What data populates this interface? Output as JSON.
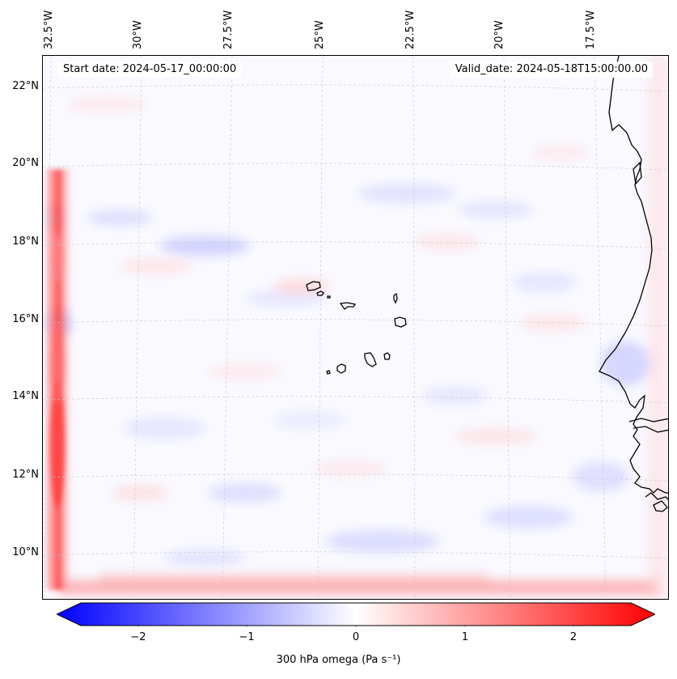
{
  "header": {
    "start_date": "Start date: 2024-05-17_00:00:00",
    "valid_date": "Valid_date: 2024-05-18T15:00:00.00"
  },
  "axes": {
    "longitude_labels": [
      "32.5°W",
      "30°W",
      "27.5°W",
      "25°W",
      "22.5°W",
      "20°W",
      "17.5°W"
    ],
    "latitude_labels": [
      "22°N",
      "20°N",
      "18°N",
      "16°N",
      "14°N",
      "12°N",
      "10°N"
    ]
  },
  "colorbar": {
    "ticks": [
      "−2",
      "−1",
      "0",
      "1",
      "2"
    ],
    "label": "300 hPa omega (Pa s⁻¹)",
    "min_color": "#0000ff",
    "mid_color": "#ffffff",
    "max_color": "#ff0000",
    "range": [
      -2.6,
      2.6
    ]
  },
  "map": {
    "background_color": "#f9f9ff",
    "coastline_color": "#000000",
    "gridline_color": "#c8c8c8",
    "features": [
      "cabo-verde-islands",
      "west-africa-coastline"
    ]
  }
}
